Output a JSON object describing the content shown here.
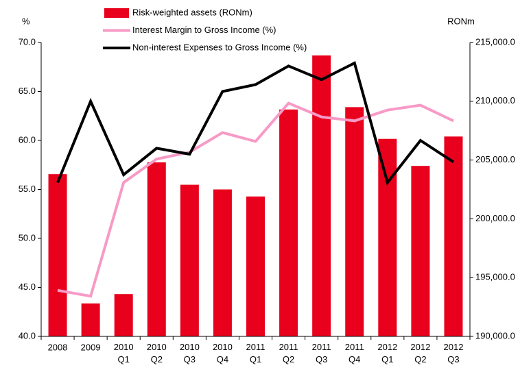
{
  "chart_data": {
    "type": "bar-line",
    "y_label": "%",
    "y2_label": "RONm",
    "categories": [
      "2008",
      "2009",
      "2010 Q1",
      "2010 Q2",
      "2010 Q3",
      "2010 Q4",
      "2011 Q1",
      "2011 Q2",
      "2011 Q3",
      "2011 Q4",
      "2012 Q1",
      "2012 Q2",
      "2012 Q3"
    ],
    "series": [
      {
        "name": "Risk-weighted assets (RONm)",
        "type": "bar",
        "axis": "y2",
        "color": "#e8001c",
        "values": [
          203800,
          192800,
          193600,
          204800,
          202900,
          202500,
          201900,
          209300,
          213900,
          209500,
          206800,
          204500,
          207000
        ]
      },
      {
        "name": "Interest Margin to Gross Income (%)",
        "type": "line",
        "color": "#f79ac6",
        "values": [
          44.7,
          44.1,
          55.7,
          58.1,
          58.8,
          60.8,
          59.9,
          63.8,
          62.4,
          62.0,
          63.1,
          63.6,
          62.0
        ]
      },
      {
        "name": "Non-interest Expenses to Gross Income (%)",
        "type": "line",
        "color": "#000000",
        "values": [
          55.7,
          64.0,
          56.5,
          59.2,
          58.6,
          65.0,
          65.7,
          67.6,
          66.2,
          67.9,
          55.7,
          60.0,
          57.8
        ]
      }
    ],
    "ylim": [
      40,
      70
    ],
    "yticks": [
      {
        "value": 40,
        "label": "40.0"
      },
      {
        "value": 45,
        "label": "45.0"
      },
      {
        "value": 50,
        "label": "50.0"
      },
      {
        "value": 55,
        "label": "55.0"
      },
      {
        "value": 60,
        "label": "60.0"
      },
      {
        "value": 65,
        "label": "65.0"
      },
      {
        "value": 70,
        "label": "70.0"
      }
    ],
    "y2lim": [
      190000,
      215000
    ],
    "y2ticks": [
      {
        "value": 190000,
        "label": "190,000.0"
      },
      {
        "value": 195000,
        "label": "195,000.0"
      },
      {
        "value": 200000,
        "label": "200,000.0"
      },
      {
        "value": 205000,
        "label": "205,000.0"
      },
      {
        "value": 210000,
        "label": "210,000.0"
      },
      {
        "value": 215000,
        "label": "215,000.0"
      }
    ],
    "grid": false,
    "legend": "top"
  }
}
